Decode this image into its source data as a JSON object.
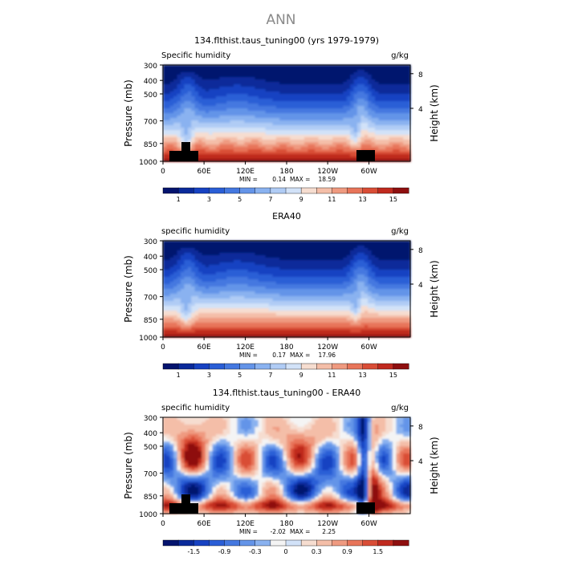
{
  "figure": {
    "title": "ANN"
  },
  "colors": {
    "palette": [
      "#04146e",
      "#0a2a9a",
      "#1742c2",
      "#2a5ed6",
      "#4478e0",
      "#6494e8",
      "#8ab2f0",
      "#b0ccf5",
      "#d2e2f8",
      "#f6ddd0",
      "#f4bea8",
      "#ef9a80",
      "#e8755a",
      "#d94d36",
      "#c02a1f",
      "#8e0f0f"
    ],
    "terrain": "#000000"
  },
  "chart_data": [
    {
      "type": "heatmap",
      "id": "model",
      "title": "134.flthist.taus_tuning00 (yrs 1979-1979)",
      "left_label": "Specific humidity",
      "right_label": "g/kg",
      "ylabel": "Pressure (mb)",
      "y2label": "Height (km)",
      "yticks": [
        "300",
        "400",
        "500",
        "700",
        "850",
        "1000"
      ],
      "y2ticks": [
        "8",
        "4"
      ],
      "xticks": [
        "0",
        "60E",
        "120E",
        "180",
        "120W",
        "60W"
      ],
      "min_label": "MIN =",
      "min_value": "0.14",
      "max_label": "MAX =",
      "max_value": "18.59",
      "colorbar_labels": [
        "1",
        "3",
        "5",
        "7",
        "9",
        "11",
        "13",
        "15"
      ],
      "has_terrain": true
    },
    {
      "type": "heatmap",
      "id": "obs",
      "title": "ERA40",
      "left_label": "specific humidity",
      "right_label": "g/kg",
      "ylabel": "Pressure (mb)",
      "y2label": "Height (km)",
      "yticks": [
        "300",
        "400",
        "500",
        "700",
        "850",
        "1000"
      ],
      "y2ticks": [
        "8",
        "4"
      ],
      "xticks": [
        "0",
        "60E",
        "120E",
        "180",
        "120W",
        "60W"
      ],
      "min_label": "MIN =",
      "min_value": "0.17",
      "max_label": "MAX =",
      "max_value": "17.96",
      "colorbar_labels": [
        "1",
        "3",
        "5",
        "7",
        "9",
        "11",
        "13",
        "15"
      ],
      "has_terrain": false
    },
    {
      "type": "heatmap",
      "id": "diff",
      "title": "134.flthist.taus_tuning00 - ERA40",
      "left_label": "specific humidity",
      "right_label": "g/kg",
      "ylabel": "Pressure (mb)",
      "y2label": "Height (km)",
      "yticks": [
        "300",
        "400",
        "500",
        "700",
        "850",
        "1000"
      ],
      "y2ticks": [
        "8",
        "4"
      ],
      "xticks": [
        "0",
        "60E",
        "120E",
        "180",
        "120W",
        "60W"
      ],
      "min_label": "MIN =",
      "min_value": "-2.02",
      "max_label": "MAX =",
      "max_value": "2.25",
      "colorbar_labels": [
        "-1.5",
        "-0.9",
        "-0.3",
        "0",
        "0.3",
        "0.9",
        "1.5"
      ],
      "has_terrain": true
    }
  ]
}
